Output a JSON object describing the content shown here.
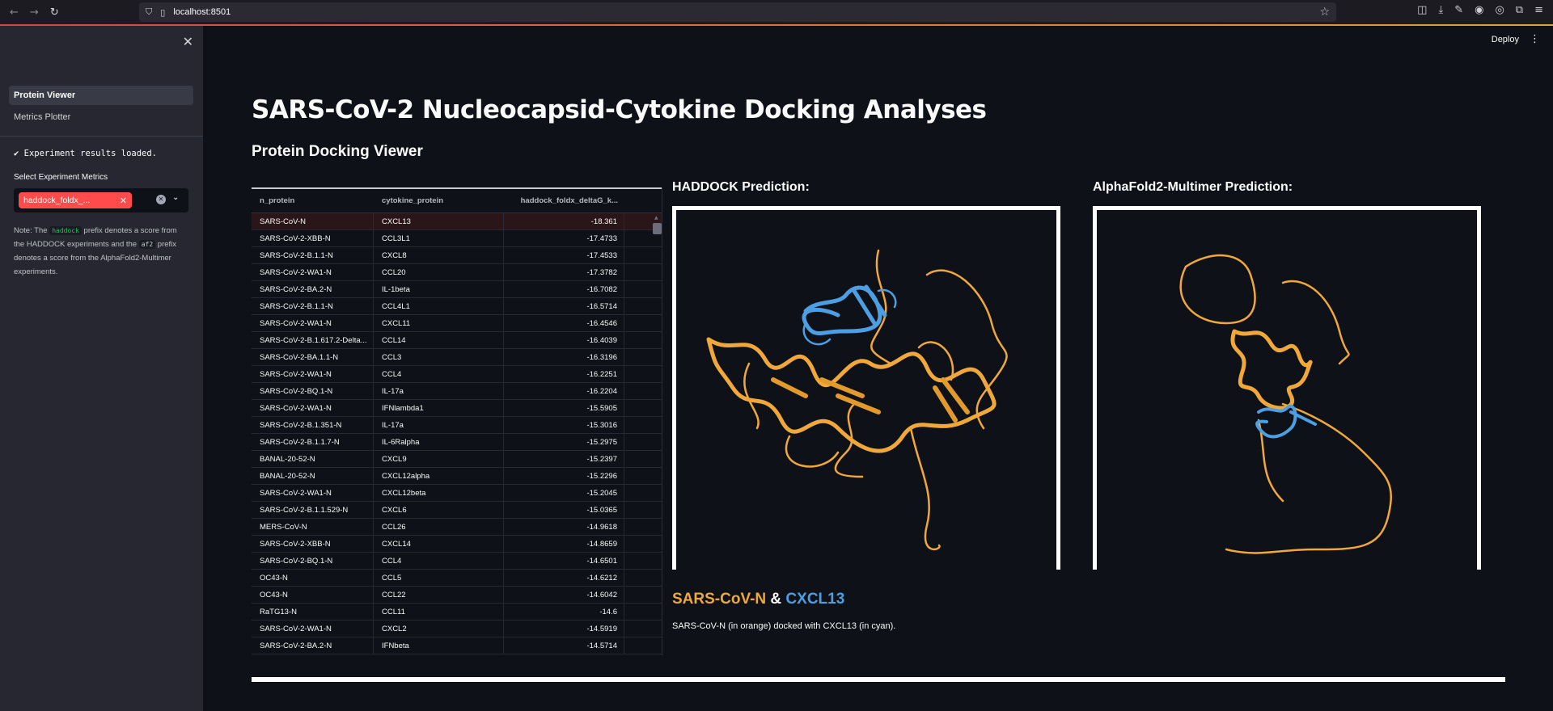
{
  "browser": {
    "url": "localhost:8501",
    "back_icon": "arrow-left-icon",
    "forward_icon": "arrow-right-icon",
    "reload_icon": "reload-icon"
  },
  "app": {
    "deploy_label": "Deploy",
    "title": "SARS-CoV-2 Nucleocapsid-Cytokine Docking Analyses",
    "subtitle": "Protein Docking Viewer"
  },
  "sidebar": {
    "nav": [
      {
        "label": "Protein Viewer",
        "active": true
      },
      {
        "label": "Metrics Plotter",
        "active": false
      }
    ],
    "success_message": "✔ Experiment results loaded.",
    "metrics_label": "Select Experiment Metrics",
    "selected_metric": "haddock_foldx_...",
    "note": {
      "part1": "Note: The ",
      "code1": "haddock",
      "part2": " prefix denotes a score from the HADDOCK experiments and the ",
      "code2": "af2",
      "part3": " prefix denotes a score from the AlphaFold2-Multimer experiments."
    }
  },
  "table": {
    "columns": [
      "n_protein",
      "cytokine_protein",
      "haddock_foldx_deltaG_k..."
    ],
    "rows": [
      [
        "SARS-CoV-N",
        "CXCL13",
        "-18.361"
      ],
      [
        "SARS-CoV-2-XBB-N",
        "CCL3L1",
        "-17.4733"
      ],
      [
        "SARS-CoV-2-B.1.1-N",
        "CXCL8",
        "-17.4533"
      ],
      [
        "SARS-CoV-2-WA1-N",
        "CCL20",
        "-17.3782"
      ],
      [
        "SARS-CoV-2-BA.2-N",
        "IL-1beta",
        "-16.7082"
      ],
      [
        "SARS-CoV-2-B.1.1-N",
        "CCL4L1",
        "-16.5714"
      ],
      [
        "SARS-CoV-2-WA1-N",
        "CXCL11",
        "-16.4546"
      ],
      [
        "SARS-CoV-2-B.1.617.2-Delta...",
        "CCL14",
        "-16.4039"
      ],
      [
        "SARS-CoV-2-BA.1.1-N",
        "CCL3",
        "-16.3196"
      ],
      [
        "SARS-CoV-2-WA1-N",
        "CCL4",
        "-16.2251"
      ],
      [
        "SARS-CoV-2-BQ.1-N",
        "IL-17a",
        "-16.2204"
      ],
      [
        "SARS-CoV-2-WA1-N",
        "IFNlambda1",
        "-15.5905"
      ],
      [
        "SARS-CoV-2-B.1.351-N",
        "IL-17a",
        "-15.3016"
      ],
      [
        "SARS-CoV-2-B.1.1.7-N",
        "IL-6Ralpha",
        "-15.2975"
      ],
      [
        "BANAL-20-52-N",
        "CXCL9",
        "-15.2397"
      ],
      [
        "BANAL-20-52-N",
        "CXCL12alpha",
        "-15.2296"
      ],
      [
        "SARS-CoV-2-WA1-N",
        "CXCL12beta",
        "-15.2045"
      ],
      [
        "SARS-CoV-2-B.1.1.529-N",
        "CXCL6",
        "-15.0365"
      ],
      [
        "MERS-CoV-N",
        "CCL26",
        "-14.9618"
      ],
      [
        "SARS-CoV-2-XBB-N",
        "CXCL14",
        "-14.8659"
      ],
      [
        "SARS-CoV-2-BQ.1-N",
        "CCL4",
        "-14.6501"
      ],
      [
        "OC43-N",
        "CCL5",
        "-14.6212"
      ],
      [
        "OC43-N",
        "CCL22",
        "-14.6042"
      ],
      [
        "RaTG13-N",
        "CCL11",
        "-14.6"
      ],
      [
        "SARS-CoV-2-WA1-N",
        "CXCL2",
        "-14.5919"
      ],
      [
        "SARS-CoV-2-BA.2-N",
        "IFNbeta",
        "-14.5714"
      ]
    ]
  },
  "predictions": {
    "haddock_label": "HADDOCK Prediction:",
    "af2_label": "AlphaFold2-Multimer Prediction:"
  },
  "pair": {
    "n_protein": "SARS-CoV-N",
    "amp": "&",
    "cytokine": "CXCL13",
    "caption": "SARS-CoV-N (in orange) docked with CXCL13 (in cyan)."
  },
  "colors": {
    "orange": "#f0a83a",
    "cyan": "#4d9fe3",
    "accent": "#ff4b4b"
  }
}
